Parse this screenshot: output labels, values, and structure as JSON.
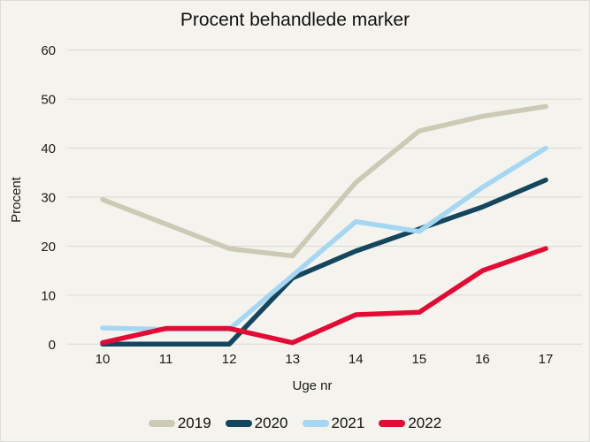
{
  "chart_data": {
    "type": "line",
    "title": "Procent behandlede marker",
    "xlabel": "Uge nr",
    "ylabel": "Procent",
    "categories": [
      "10",
      "11",
      "12",
      "13",
      "14",
      "15",
      "16",
      "17"
    ],
    "yticks": [
      0,
      10,
      20,
      30,
      40,
      50,
      60
    ],
    "ylim": [
      0,
      60
    ],
    "grid": true,
    "legend_position": "bottom",
    "colors": {
      "background": "#f4f3ed",
      "gridline": "#d9d9d3",
      "text": "#1a1a1a"
    },
    "series": [
      {
        "name": "2019",
        "color": "#cccab5",
        "values": [
          29.5,
          24.5,
          19.5,
          18,
          33,
          43.5,
          46.5,
          48.5
        ]
      },
      {
        "name": "2020",
        "color": "#15465e",
        "values": [
          0,
          0,
          0,
          13.5,
          19,
          23.5,
          28,
          33.5
        ]
      },
      {
        "name": "2021",
        "color": "#a5d7f2",
        "values": [
          3.3,
          3,
          3,
          14,
          25,
          23,
          32,
          40
        ]
      },
      {
        "name": "2022",
        "color": "#e30b33",
        "values": [
          0.3,
          3.2,
          3.2,
          0.3,
          6,
          6.5,
          15,
          19.5
        ]
      }
    ]
  }
}
